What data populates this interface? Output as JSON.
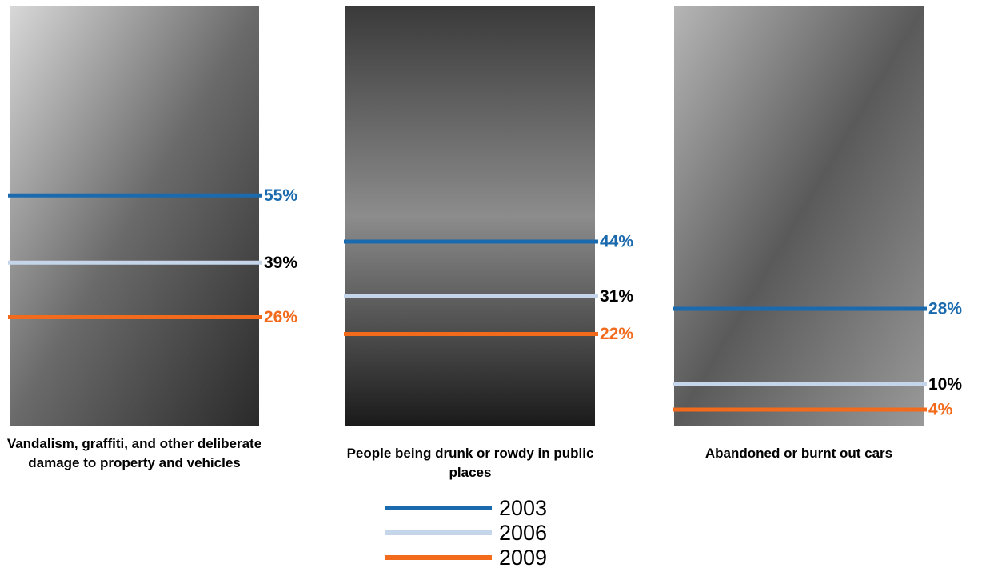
{
  "chart_data": {
    "type": "level",
    "categories": [
      "Vandalism, graffiti, and other deliberate damage to property and vehicles",
      "People being drunk or rowdy in public places",
      "Abandoned or burnt out cars"
    ],
    "series": [
      {
        "name": "2003",
        "color": "#1a6aad",
        "label_color": "#1a6aad",
        "values": [
          55,
          44,
          28
        ],
        "value_labels": [
          "55%",
          "44%",
          "28%"
        ]
      },
      {
        "name": "2006",
        "color": "#c5d6ea",
        "label_color": "#000000",
        "values": [
          39,
          31,
          10
        ],
        "value_labels": [
          "39%",
          "31%",
          "10%"
        ]
      },
      {
        "name": "2009",
        "color": "#f26a1b",
        "label_color": "#f26a1b",
        "values": [
          26,
          22,
          4
        ],
        "value_labels": [
          "26%",
          "22%",
          "4%"
        ]
      }
    ],
    "ylim": [
      0,
      100
    ]
  }
}
